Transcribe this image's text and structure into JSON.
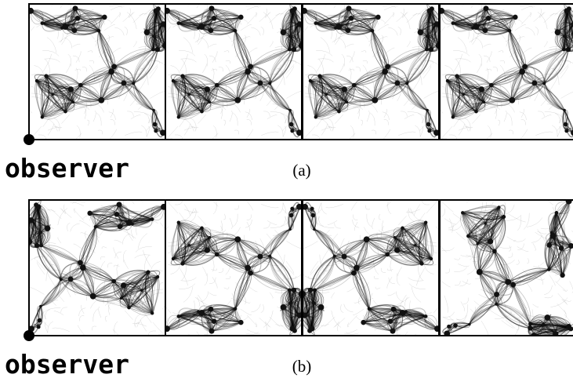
{
  "figure": {
    "panels": [
      {
        "observer_label": "observer",
        "caption": "(a)"
      },
      {
        "observer_label": "observer",
        "caption": "(b)"
      }
    ]
  }
}
